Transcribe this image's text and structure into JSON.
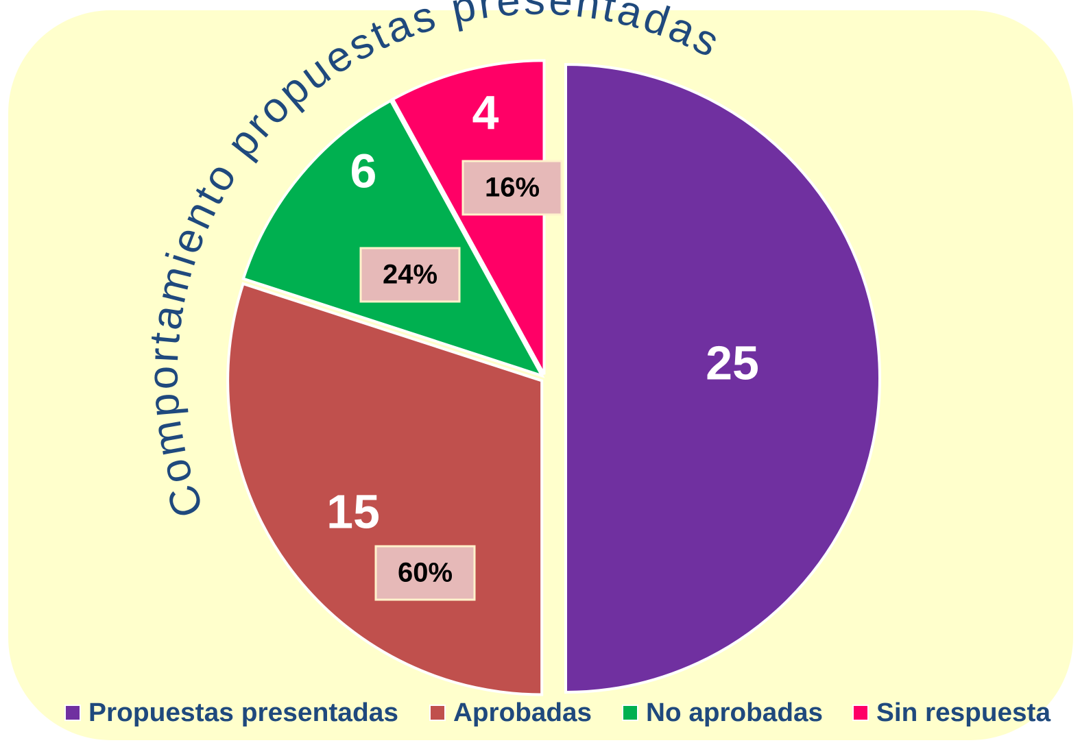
{
  "chart_data": {
    "type": "pie",
    "title": "Comportamiento propuestas presentadas",
    "categories": [
      "Propuestas presentadas",
      "Aprobadas",
      "No aprobadas",
      "Sin respuesta"
    ],
    "values": [
      25,
      15,
      6,
      4
    ],
    "colors": [
      "#7030a0",
      "#c0504d",
      "#00b050",
      "#ff0066"
    ],
    "percent_labels": [
      null,
      "60%",
      "24%",
      "16%"
    ],
    "legend": "bottom"
  }
}
